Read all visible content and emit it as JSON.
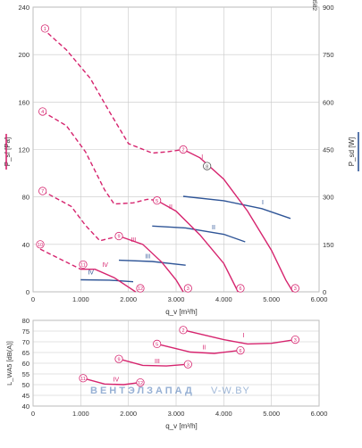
{
  "chart_data": [
    {
      "type": "line",
      "id": "pressure_power",
      "doc_code": "88582",
      "xlabel": "q_v [m³/h]",
      "ylabel_left": "P_sf [Pa]",
      "ylabel_right": "P_sd [W]",
      "xlim": [
        0,
        6000
      ],
      "ylim_left": [
        0,
        240
      ],
      "ylim_right": [
        0,
        900
      ],
      "x_ticks": [
        0,
        1000,
        2000,
        3000,
        4000,
        5000,
        6000
      ],
      "x_tick_labels": [
        "0",
        "1.000",
        "2.000",
        "3.000",
        "4.000",
        "5.000",
        "6.000"
      ],
      "y_ticks_left": [
        0,
        40,
        80,
        120,
        160,
        200,
        240
      ],
      "y_ticks_right": [
        0,
        150,
        300,
        450,
        600,
        750,
        900
      ],
      "colors": {
        "pressure": "#d6246e",
        "power": "#2f5597",
        "grid": "#c8c8c8",
        "marker": "#d6246e"
      },
      "pressure_series": [
        {
          "name": "I",
          "dashed": [
            [
              200,
              222
            ],
            [
              700,
              204
            ],
            [
              1200,
              180
            ],
            [
              1600,
              152
            ],
            [
              2000,
              125
            ],
            [
              2500,
              117
            ],
            [
              2800,
              118
            ],
            [
              3150,
              120
            ]
          ],
          "solid": [
            [
              3150,
              120
            ],
            [
              3500,
              113
            ],
            [
              4000,
              95
            ],
            [
              4500,
              68
            ],
            [
              5000,
              35
            ],
            [
              5300,
              10
            ],
            [
              5450,
              0
            ]
          ],
          "markers": [
            {
              "x": 250,
              "y": 222,
              "label": "1"
            },
            {
              "x": 3150,
              "y": 120,
              "label": "2"
            },
            {
              "x": 3650,
              "y": 106,
              "label": "8"
            },
            {
              "x": 5500,
              "y": 3,
              "label": "3"
            }
          ],
          "label_at": [
            3530,
            112
          ]
        },
        {
          "name": "II",
          "dashed": [
            [
              200,
              152
            ],
            [
              700,
              140
            ],
            [
              1100,
              118
            ],
            [
              1500,
              86
            ],
            [
              1700,
              74
            ],
            [
              2100,
              75
            ],
            [
              2400,
              78
            ],
            [
              2600,
              77
            ]
          ],
          "solid": [
            [
              2600,
              77
            ],
            [
              3000,
              68
            ],
            [
              3500,
              48
            ],
            [
              4000,
              24
            ],
            [
              4300,
              0
            ]
          ],
          "markers": [
            {
              "x": 200,
              "y": 152,
              "label": "4"
            },
            {
              "x": 2600,
              "y": 77,
              "label": "5"
            },
            {
              "x": 4350,
              "y": 3,
              "label": "6"
            }
          ],
          "label_at": [
            2850,
            70
          ]
        },
        {
          "name": "III",
          "dashed": [
            [
              200,
              85
            ],
            [
              800,
              72
            ],
            [
              1100,
              56
            ],
            [
              1400,
              43
            ],
            [
              1800,
              47
            ]
          ],
          "solid": [
            [
              1800,
              47
            ],
            [
              2300,
              40
            ],
            [
              2700,
              25
            ],
            [
              3000,
              10
            ],
            [
              3150,
              0
            ]
          ],
          "markers": [
            {
              "x": 200,
              "y": 85,
              "label": "7"
            },
            {
              "x": 1800,
              "y": 47,
              "label": "9"
            },
            {
              "x": 3250,
              "y": 3,
              "label": "3"
            }
          ],
          "label_at": [
            2050,
            42
          ]
        },
        {
          "name": "IV",
          "dashed": [
            [
              150,
              36
            ],
            [
              500,
              29
            ],
            [
              800,
              23
            ],
            [
              1000,
              19
            ]
          ],
          "solid": [
            [
              1000,
              19
            ],
            [
              1300,
              19
            ],
            [
              1700,
              12
            ],
            [
              2000,
              4
            ],
            [
              2150,
              0
            ]
          ],
          "markers": [
            {
              "x": 150,
              "y": 40,
              "label": "10"
            },
            {
              "x": 1050,
              "y": 23,
              "label": "11"
            },
            {
              "x": 2250,
              "y": 3,
              "label": "12"
            }
          ],
          "label_at": [
            1450,
            21
          ]
        }
      ],
      "power_series": [
        {
          "name": "I",
          "points": [
            [
              3150,
              302
            ],
            [
              4000,
              288
            ],
            [
              4800,
              263
            ],
            [
              5400,
              232
            ]
          ],
          "label_at": [
            4800,
            276
          ]
        },
        {
          "name": "II",
          "points": [
            [
              2500,
              208
            ],
            [
              3200,
              202
            ],
            [
              4000,
              182
            ],
            [
              4450,
              158
            ]
          ],
          "label_at": [
            3750,
            198
          ]
        },
        {
          "name": "III",
          "points": [
            [
              1800,
              100
            ],
            [
              2500,
              96
            ],
            [
              3200,
              84
            ]
          ],
          "label_at": [
            2350,
            106
          ]
        },
        {
          "name": "IV",
          "points": [
            [
              1000,
              38
            ],
            [
              1600,
              37
            ],
            [
              2100,
              32
            ]
          ],
          "label_at": [
            1150,
            55
          ]
        }
      ],
      "marker_count": 13
    },
    {
      "type": "line",
      "id": "sound",
      "xlabel": "q_v [m³/h]",
      "ylabel": "L_WA5 [dB(A)]",
      "xlim": [
        0,
        6000
      ],
      "ylim": [
        40,
        80
      ],
      "x_ticks": [
        0,
        1000,
        2000,
        3000,
        4000,
        5000,
        6000
      ],
      "x_tick_labels": [
        "0",
        "1.000",
        "2.000",
        "3.000",
        "4.000",
        "5.000",
        "6.000"
      ],
      "y_ticks": [
        40,
        45,
        50,
        55,
        60,
        65,
        70,
        75,
        80
      ],
      "colors": {
        "line": "#d6246e"
      },
      "series": [
        {
          "name": "I",
          "points": [
            [
              3150,
              75.5
            ],
            [
              4000,
              71
            ],
            [
              4500,
              69
            ],
            [
              5000,
              69.3
            ],
            [
              5500,
              71
            ]
          ],
          "markers": [
            {
              "x": 3150,
              "y": 75.5,
              "label": "2"
            },
            {
              "x": 5500,
              "y": 71,
              "label": "3"
            }
          ],
          "label_at": [
            4400,
            72
          ]
        },
        {
          "name": "II",
          "points": [
            [
              2600,
              69
            ],
            [
              3300,
              65.2
            ],
            [
              3800,
              64.6
            ],
            [
              4350,
              66
            ]
          ],
          "markers": [
            {
              "x": 2600,
              "y": 69,
              "label": "5"
            },
            {
              "x": 4350,
              "y": 66,
              "label": "6"
            }
          ],
          "label_at": [
            3550,
            66.5
          ]
        },
        {
          "name": "III",
          "points": [
            [
              1800,
              62
            ],
            [
              2300,
              59
            ],
            [
              2800,
              58.7
            ],
            [
              3250,
              59.5
            ]
          ],
          "markers": [
            {
              "x": 1800,
              "y": 62,
              "label": "9"
            },
            {
              "x": 3250,
              "y": 59.5,
              "label": "3"
            }
          ],
          "label_at": [
            2550,
            60
          ]
        },
        {
          "name": "IV",
          "points": [
            [
              1050,
              53
            ],
            [
              1500,
              50.3
            ],
            [
              1900,
              50
            ],
            [
              2250,
              51
            ]
          ],
          "markers": [
            {
              "x": 1050,
              "y": 53,
              "label": "11"
            },
            {
              "x": 2250,
              "y": 51,
              "label": "12"
            }
          ],
          "label_at": [
            1680,
            51.5
          ]
        }
      ]
    }
  ],
  "watermark": {
    "brand": "ВЕНТЭЛЗАПАД",
    "site": "V-W.BY"
  }
}
